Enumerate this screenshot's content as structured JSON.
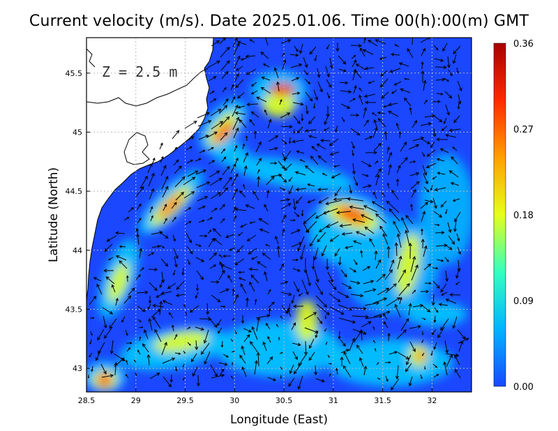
{
  "chart_data": {
    "type": "heatmap",
    "title": "Current velocity (m/s). Date 2025.01.06. Time 00(h):00(m) GMT",
    "depth_label": "Z = 2.5 m",
    "xlabel": "Longitude (East)",
    "ylabel": "Latitude (North)",
    "xlim": [
      28.5,
      32.4
    ],
    "ylim": [
      42.8,
      45.8
    ],
    "x_ticks": [
      "28.5",
      "29",
      "29.5",
      "30",
      "30.5",
      "31",
      "31.5",
      "32"
    ],
    "y_ticks": [
      "43",
      "43.5",
      "44",
      "44.5",
      "45",
      "45.5"
    ],
    "colorbar": {
      "min": 0,
      "max": 0.36,
      "ticks": [
        "0.00",
        "0.09",
        "0.18",
        "0.27",
        "0.36"
      ],
      "colors": [
        "#1a47ff",
        "#00b4ff",
        "#33ffc0",
        "#e6ff1a",
        "#ffa000",
        "#ff2a00",
        "#a80000"
      ]
    },
    "grid": true,
    "land_color": "#ffffff",
    "vector_color": "#000000"
  }
}
